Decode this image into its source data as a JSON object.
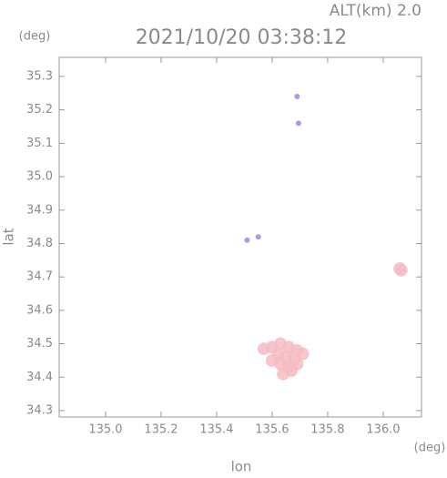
{
  "chart_data": {
    "type": "scatter",
    "title": "2021/10/20 03:38:12",
    "annotation": "ALT(km) 2.0",
    "ylabel": "lat",
    "y_unit": "(deg)",
    "xlabel": "lon",
    "x_unit": "(deg)",
    "xlim": [
      134.833,
      136.138
    ],
    "ylim": [
      34.281,
      35.357
    ],
    "xticks": [
      {
        "value": 135,
        "label": "135.0"
      },
      135.2,
      135.4,
      135.6,
      135.8,
      {
        "value": 136,
        "label": "136.0"
      }
    ],
    "yticks": [
      34.3,
      34.4,
      34.5,
      34.6,
      34.7,
      34.8,
      34.9,
      {
        "value": 35,
        "label": "35.0"
      },
      35.1,
      35.2,
      35.3
    ],
    "grid": false,
    "series": [
      {
        "color": "#8e8ee6",
        "x": [
          135.69,
          135.695,
          135.51,
          135.55
        ],
        "y": [
          35.24,
          35.16,
          34.81,
          34.82
        ]
      },
      {
        "color": "#f5bcc3",
        "x": [
          135.57,
          135.6,
          135.63,
          135.66,
          135.69,
          135.71,
          135.62,
          135.65,
          135.68,
          135.63,
          135.66,
          135.64,
          135.67,
          135.69,
          135.6,
          136.06,
          136.065
        ],
        "y": [
          34.485,
          34.49,
          34.5,
          34.49,
          34.48,
          34.47,
          34.47,
          34.46,
          34.455,
          34.44,
          34.43,
          34.41,
          34.42,
          34.44,
          34.45,
          34.725,
          34.72
        ]
      }
    ]
  }
}
